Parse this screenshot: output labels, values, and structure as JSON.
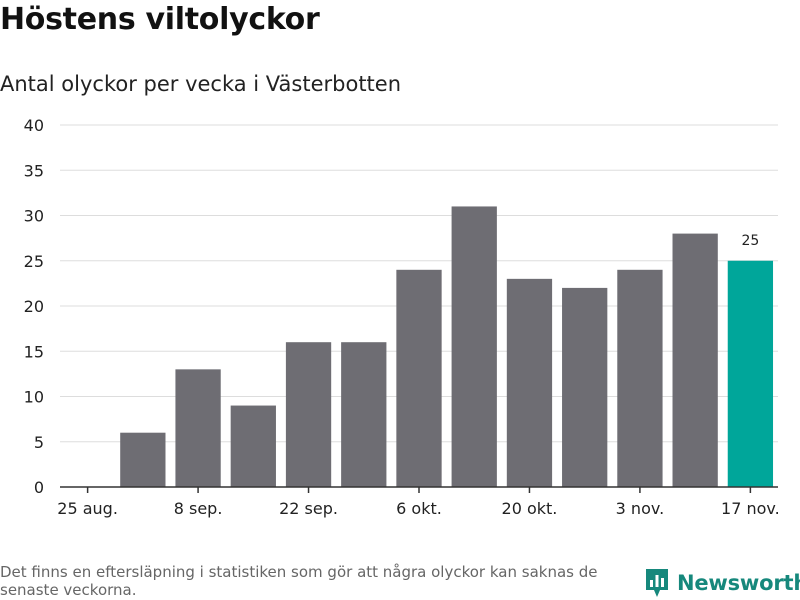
{
  "title": "Höstens viltolyckor",
  "subtitle": "Antal olyckor per vecka i Västerbotten",
  "footnote": "Det finns en eftersläpning i statistiken som gör att några olyckor kan saknas de senaste veckorna.",
  "brand": {
    "name": "Newsworthy",
    "icon": "newsworthy-logo-icon",
    "color": "#16887c"
  },
  "colors": {
    "bar": "#6e6d73",
    "highlight": "#00a69a",
    "grid": "#dddddd",
    "axis": "#333333"
  },
  "chart_data": {
    "type": "bar",
    "x": [
      "25 aug.",
      "1 sep.",
      "8 sep.",
      "15 sep.",
      "22 sep.",
      "29 sep.",
      "6 okt.",
      "13 okt.",
      "20 okt.",
      "27 okt.",
      "3 nov.",
      "10 nov.",
      "17 nov."
    ],
    "values": [
      null,
      6,
      13,
      9,
      16,
      16,
      24,
      31,
      23,
      22,
      24,
      28,
      25
    ],
    "x_tick_labels": [
      "25 aug.",
      "8 sep.",
      "22 sep.",
      "6 okt.",
      "20 okt.",
      "3 nov.",
      "17 nov."
    ],
    "y_ticks": [
      0,
      5,
      10,
      15,
      20,
      25,
      30,
      35,
      40
    ],
    "ylim": [
      0,
      40
    ],
    "highlight_index": 12,
    "data_labels": [
      {
        "index": 12,
        "text": "25"
      }
    ],
    "grid": true,
    "xlabel": "",
    "ylabel": ""
  }
}
